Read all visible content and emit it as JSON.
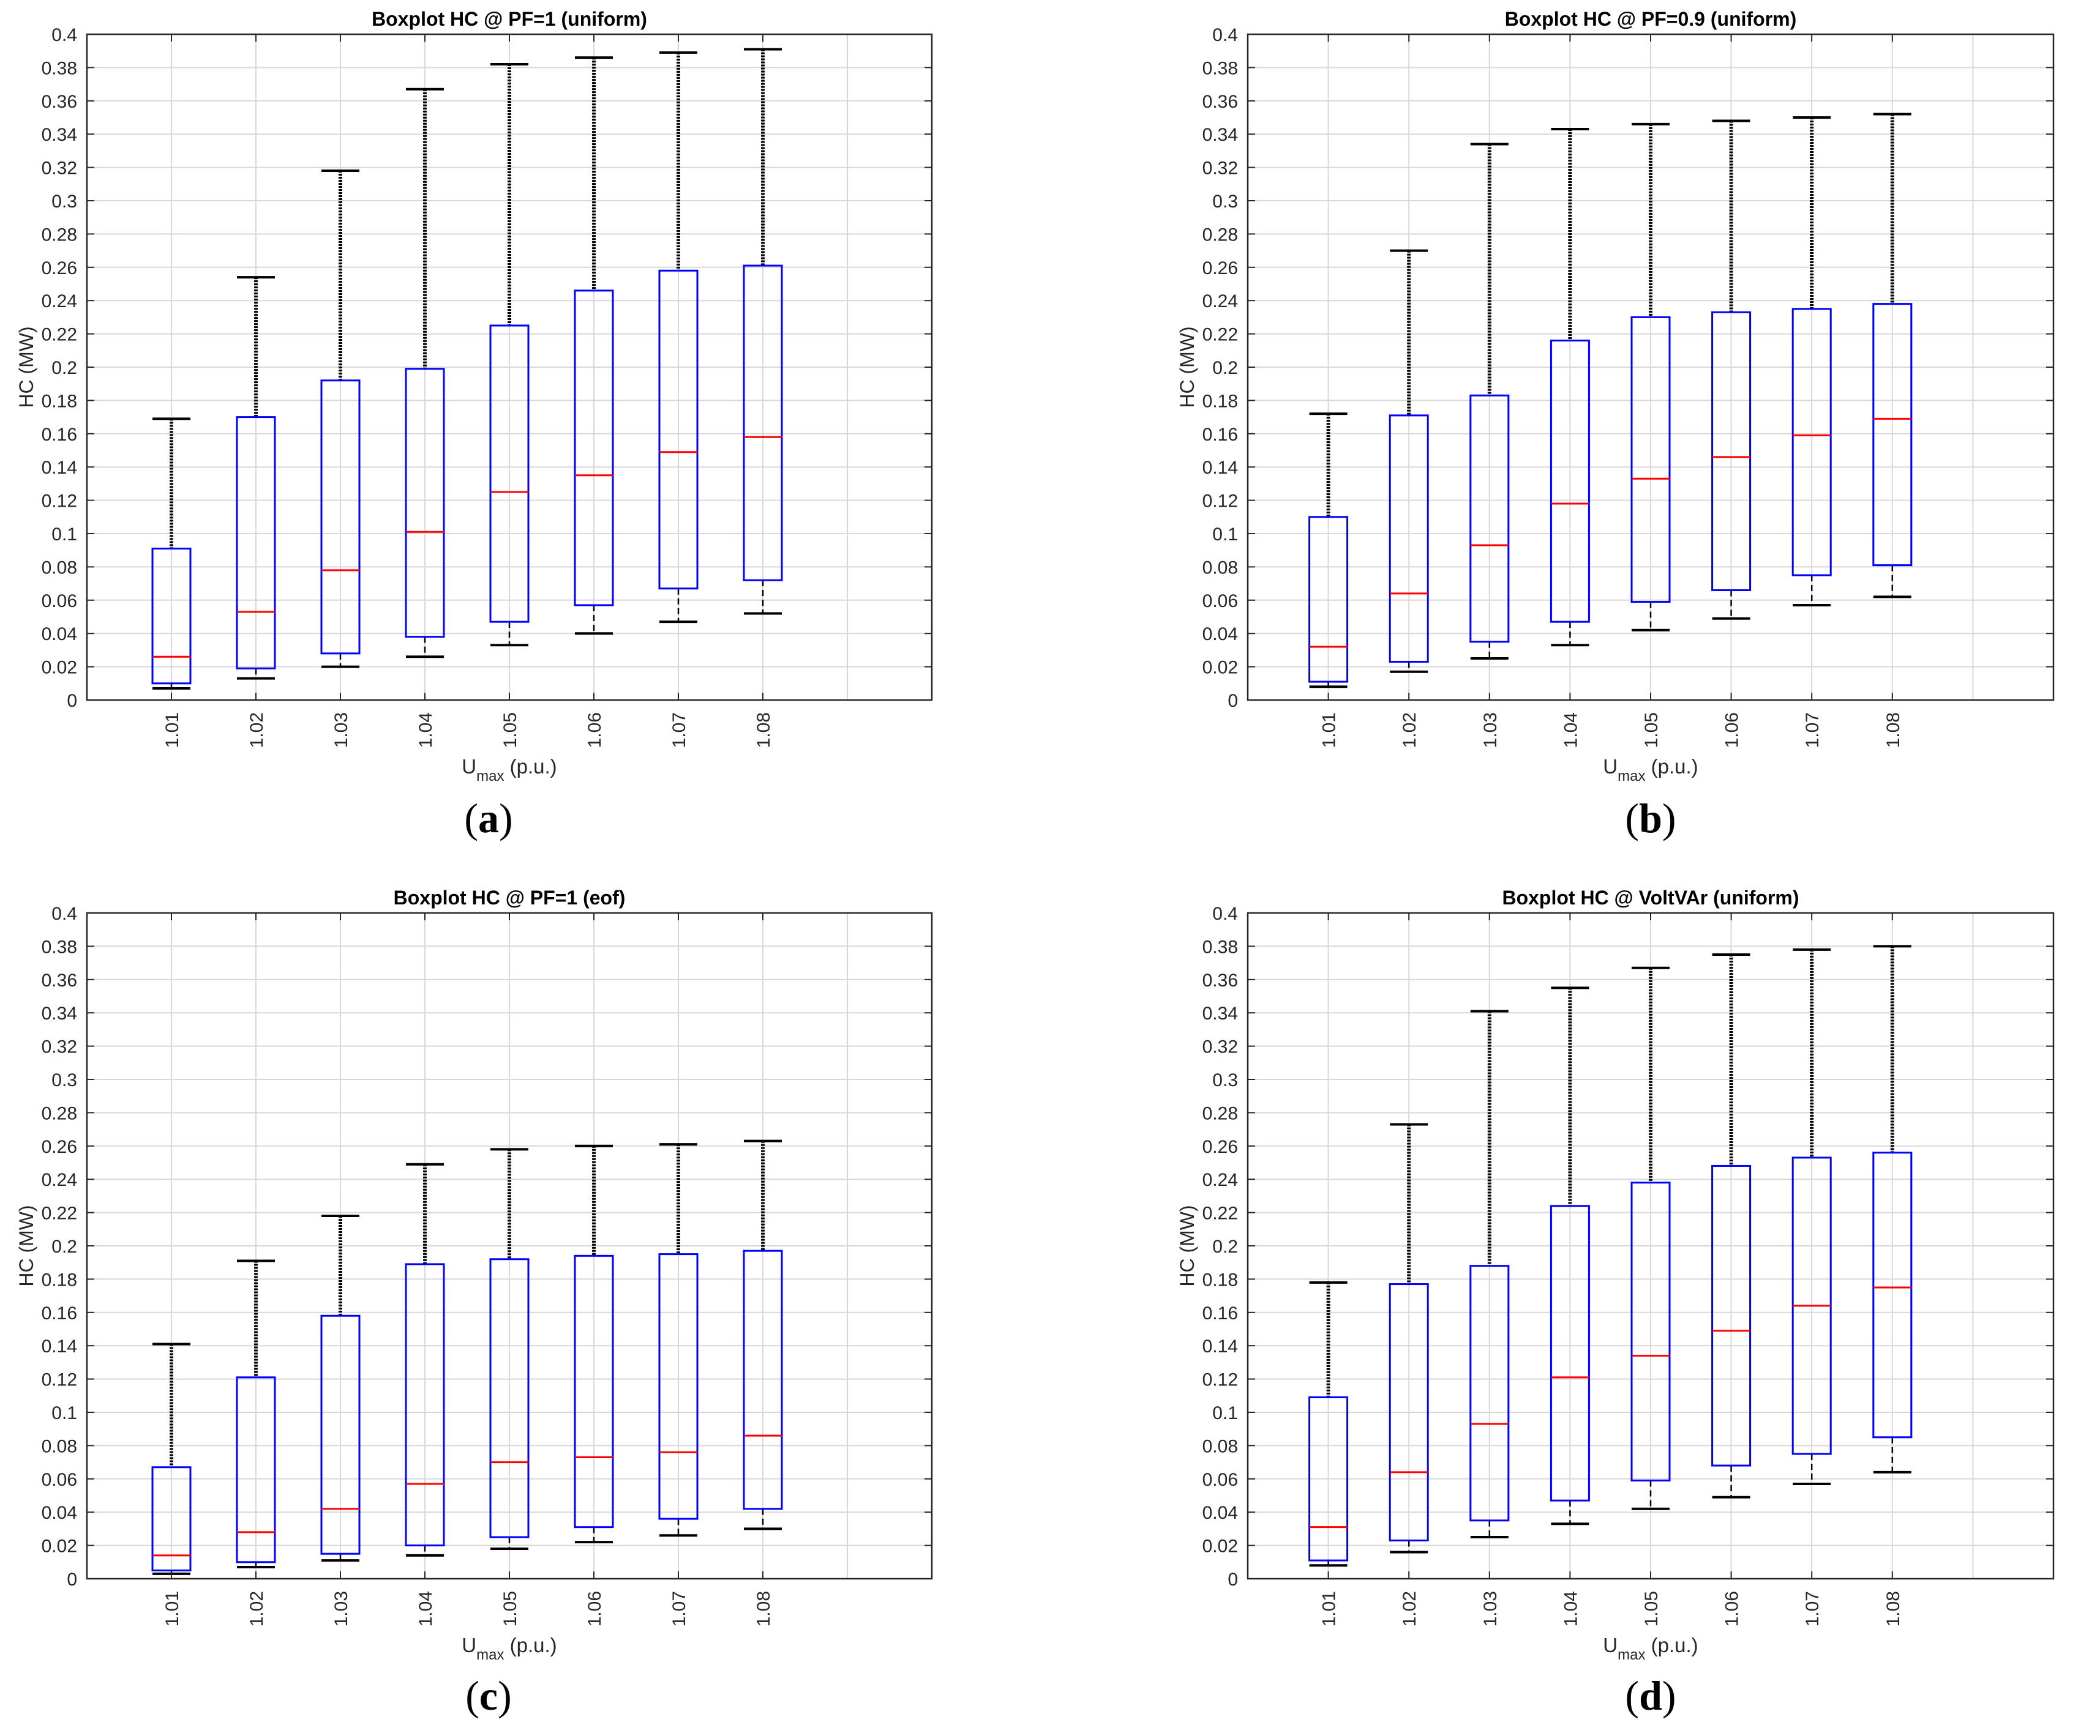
{
  "chart_data": [
    {
      "type": "boxplot",
      "panel_label": "(a)",
      "panel_letter": "a",
      "title": "Boxplot HC @ PF=1  (uniform)",
      "ylabel": "HC (MW)",
      "xlabel_main": "U",
      "xlabel_sub": "max",
      "xlabel_unit": " (p.u.)",
      "ylim": [
        0,
        0.4
      ],
      "yticks": [
        "0",
        "0.02",
        "0.04",
        "0.06",
        "0.08",
        "0.1",
        "0.12",
        "0.14",
        "0.16",
        "0.18",
        "0.2",
        "0.22",
        "0.24",
        "0.26",
        "0.28",
        "0.3",
        "0.32",
        "0.34",
        "0.36",
        "0.38",
        "0.4"
      ],
      "categories": [
        "1.01",
        "1.02",
        "1.03",
        "1.04",
        "1.05",
        "1.06",
        "1.07",
        "1.08"
      ],
      "boxes": [
        {
          "whisker_low": 0.007,
          "q1": 0.01,
          "median": 0.026,
          "q3": 0.091,
          "whisker_high": 0.091,
          "max_outlier": 0.169
        },
        {
          "whisker_low": 0.013,
          "q1": 0.019,
          "median": 0.053,
          "q3": 0.17,
          "whisker_high": 0.17,
          "max_outlier": 0.254
        },
        {
          "whisker_low": 0.02,
          "q1": 0.028,
          "median": 0.078,
          "q3": 0.192,
          "whisker_high": 0.192,
          "max_outlier": 0.318
        },
        {
          "whisker_low": 0.026,
          "q1": 0.038,
          "median": 0.101,
          "q3": 0.199,
          "whisker_high": 0.199,
          "max_outlier": 0.367
        },
        {
          "whisker_low": 0.033,
          "q1": 0.047,
          "median": 0.125,
          "q3": 0.225,
          "whisker_high": 0.225,
          "max_outlier": 0.382
        },
        {
          "whisker_low": 0.04,
          "q1": 0.057,
          "median": 0.135,
          "q3": 0.246,
          "whisker_high": 0.246,
          "max_outlier": 0.386
        },
        {
          "whisker_low": 0.047,
          "q1": 0.067,
          "median": 0.149,
          "q3": 0.258,
          "whisker_high": 0.258,
          "max_outlier": 0.389
        },
        {
          "whisker_low": 0.052,
          "q1": 0.072,
          "median": 0.158,
          "q3": 0.261,
          "whisker_high": 0.261,
          "max_outlier": 0.391
        }
      ]
    },
    {
      "type": "boxplot",
      "panel_label": "(b)",
      "panel_letter": "b",
      "title": "Boxplot HC @ PF=0.9  (uniform)",
      "ylabel": "HC (MW)",
      "xlabel_main": "U",
      "xlabel_sub": "max",
      "xlabel_unit": " (p.u.)",
      "ylim": [
        0,
        0.4
      ],
      "yticks": [
        "0",
        "0.02",
        "0.04",
        "0.06",
        "0.08",
        "0.1",
        "0.12",
        "0.14",
        "0.16",
        "0.18",
        "0.2",
        "0.22",
        "0.24",
        "0.26",
        "0.28",
        "0.3",
        "0.32",
        "0.34",
        "0.36",
        "0.38",
        "0.4"
      ],
      "categories": [
        "1.01",
        "1.02",
        "1.03",
        "1.04",
        "1.05",
        "1.06",
        "1.07",
        "1.08"
      ],
      "boxes": [
        {
          "whisker_low": 0.008,
          "q1": 0.011,
          "median": 0.032,
          "q3": 0.11,
          "whisker_high": 0.11,
          "max_outlier": 0.172
        },
        {
          "whisker_low": 0.017,
          "q1": 0.023,
          "median": 0.064,
          "q3": 0.171,
          "whisker_high": 0.171,
          "max_outlier": 0.27
        },
        {
          "whisker_low": 0.025,
          "q1": 0.035,
          "median": 0.093,
          "q3": 0.183,
          "whisker_high": 0.183,
          "max_outlier": 0.334
        },
        {
          "whisker_low": 0.033,
          "q1": 0.047,
          "median": 0.118,
          "q3": 0.216,
          "whisker_high": 0.216,
          "max_outlier": 0.343
        },
        {
          "whisker_low": 0.042,
          "q1": 0.059,
          "median": 0.133,
          "q3": 0.23,
          "whisker_high": 0.23,
          "max_outlier": 0.346
        },
        {
          "whisker_low": 0.049,
          "q1": 0.066,
          "median": 0.146,
          "q3": 0.233,
          "whisker_high": 0.233,
          "max_outlier": 0.348
        },
        {
          "whisker_low": 0.057,
          "q1": 0.075,
          "median": 0.159,
          "q3": 0.235,
          "whisker_high": 0.235,
          "max_outlier": 0.35
        },
        {
          "whisker_low": 0.062,
          "q1": 0.081,
          "median": 0.169,
          "q3": 0.238,
          "whisker_high": 0.238,
          "max_outlier": 0.352
        }
      ]
    },
    {
      "type": "boxplot",
      "panel_label": "(c)",
      "panel_letter": "c",
      "title": "Boxplot HC @ PF=1  (eof)",
      "ylabel": "HC (MW)",
      "xlabel_main": "U",
      "xlabel_sub": "max",
      "xlabel_unit": " (p.u.)",
      "ylim": [
        0,
        0.4
      ],
      "yticks": [
        "0",
        "0.02",
        "0.04",
        "0.06",
        "0.08",
        "0.1",
        "0.12",
        "0.14",
        "0.16",
        "0.18",
        "0.2",
        "0.22",
        "0.24",
        "0.26",
        "0.28",
        "0.3",
        "0.32",
        "0.34",
        "0.36",
        "0.38",
        "0.4"
      ],
      "categories": [
        "1.01",
        "1.02",
        "1.03",
        "1.04",
        "1.05",
        "1.06",
        "1.07",
        "1.08"
      ],
      "boxes": [
        {
          "whisker_low": 0.003,
          "q1": 0.005,
          "median": 0.014,
          "q3": 0.067,
          "whisker_high": 0.067,
          "max_outlier": 0.141
        },
        {
          "whisker_low": 0.007,
          "q1": 0.01,
          "median": 0.028,
          "q3": 0.121,
          "whisker_high": 0.121,
          "max_outlier": 0.191
        },
        {
          "whisker_low": 0.011,
          "q1": 0.015,
          "median": 0.042,
          "q3": 0.158,
          "whisker_high": 0.158,
          "max_outlier": 0.218
        },
        {
          "whisker_low": 0.014,
          "q1": 0.02,
          "median": 0.057,
          "q3": 0.189,
          "whisker_high": 0.189,
          "max_outlier": 0.249
        },
        {
          "whisker_low": 0.018,
          "q1": 0.025,
          "median": 0.07,
          "q3": 0.192,
          "whisker_high": 0.192,
          "max_outlier": 0.258
        },
        {
          "whisker_low": 0.022,
          "q1": 0.031,
          "median": 0.073,
          "q3": 0.194,
          "whisker_high": 0.194,
          "max_outlier": 0.26
        },
        {
          "whisker_low": 0.026,
          "q1": 0.036,
          "median": 0.076,
          "q3": 0.195,
          "whisker_high": 0.195,
          "max_outlier": 0.261
        },
        {
          "whisker_low": 0.03,
          "q1": 0.042,
          "median": 0.086,
          "q3": 0.197,
          "whisker_high": 0.197,
          "max_outlier": 0.263
        }
      ]
    },
    {
      "type": "boxplot",
      "panel_label": "(d)",
      "panel_letter": "d",
      "title": "Boxplot HC @ VoltVAr (uniform)",
      "ylabel": "HC (MW)",
      "xlabel_main": "U",
      "xlabel_sub": "max",
      "xlabel_unit": " (p.u.)",
      "ylim": [
        0,
        0.4
      ],
      "yticks": [
        "0",
        "0.02",
        "0.04",
        "0.06",
        "0.08",
        "0.1",
        "0.12",
        "0.14",
        "0.16",
        "0.18",
        "0.2",
        "0.22",
        "0.24",
        "0.26",
        "0.28",
        "0.3",
        "0.32",
        "0.34",
        "0.36",
        "0.38",
        "0.4"
      ],
      "categories": [
        "1.01",
        "1.02",
        "1.03",
        "1.04",
        "1.05",
        "1.06",
        "1.07",
        "1.08"
      ],
      "boxes": [
        {
          "whisker_low": 0.008,
          "q1": 0.011,
          "median": 0.031,
          "q3": 0.109,
          "whisker_high": 0.109,
          "max_outlier": 0.178
        },
        {
          "whisker_low": 0.016,
          "q1": 0.023,
          "median": 0.064,
          "q3": 0.177,
          "whisker_high": 0.177,
          "max_outlier": 0.273
        },
        {
          "whisker_low": 0.025,
          "q1": 0.035,
          "median": 0.093,
          "q3": 0.188,
          "whisker_high": 0.188,
          "max_outlier": 0.341
        },
        {
          "whisker_low": 0.033,
          "q1": 0.047,
          "median": 0.121,
          "q3": 0.224,
          "whisker_high": 0.224,
          "max_outlier": 0.355
        },
        {
          "whisker_low": 0.042,
          "q1": 0.059,
          "median": 0.134,
          "q3": 0.238,
          "whisker_high": 0.238,
          "max_outlier": 0.367
        },
        {
          "whisker_low": 0.049,
          "q1": 0.068,
          "median": 0.149,
          "q3": 0.248,
          "whisker_high": 0.248,
          "max_outlier": 0.375
        },
        {
          "whisker_low": 0.057,
          "q1": 0.075,
          "median": 0.164,
          "q3": 0.253,
          "whisker_high": 0.253,
          "max_outlier": 0.378
        },
        {
          "whisker_low": 0.064,
          "q1": 0.085,
          "median": 0.175,
          "q3": 0.256,
          "whisker_high": 0.256,
          "max_outlier": 0.38
        }
      ]
    }
  ],
  "colors": {
    "box": "#0000ff",
    "median": "#ff0000",
    "whisker": "#000000",
    "grid": "#d8d8d8",
    "axis": "#262626"
  }
}
